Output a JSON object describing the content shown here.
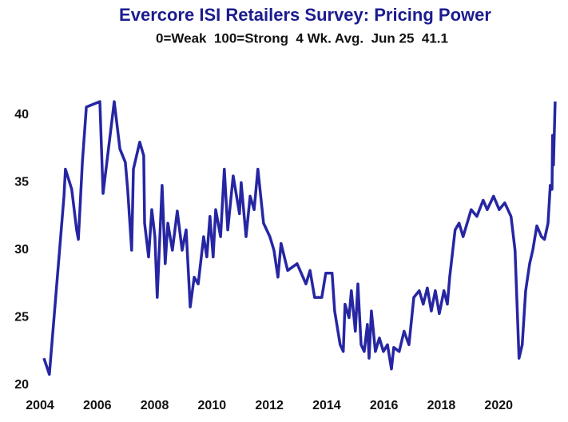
{
  "chart_data": {
    "type": "line",
    "title": "Evercore ISI Retailers Survey: Pricing Power",
    "subtitle": "0=Weak  100=Strong  4 Wk. Avg.  Jun 25  41.1",
    "xlim": [
      2004,
      2022
    ],
    "xticks": [
      2004,
      2006,
      2008,
      2010,
      2012,
      2014,
      2016,
      2018,
      2020
    ],
    "ylim": [
      20,
      43
    ],
    "yticks": [
      20,
      25,
      30,
      35,
      40
    ],
    "grid": false,
    "series": [
      {
        "name": "Pricing Power",
        "color": "#2626a3",
        "x": [
          2004.14,
          2004.33,
          2004.84,
          2004.89,
          2005.11,
          2005.28,
          2005.34,
          2005.48,
          2005.62,
          2006.09,
          2006.2,
          2006.59,
          2006.79,
          2006.98,
          2007.06,
          2007.2,
          2007.26,
          2007.48,
          2007.62,
          2007.65,
          2007.79,
          2007.9,
          2008.01,
          2008.09,
          2008.26,
          2008.37,
          2008.46,
          2008.62,
          2008.79,
          2008.96,
          2009.1,
          2009.24,
          2009.38,
          2009.52,
          2009.71,
          2009.82,
          2009.93,
          2010.04,
          2010.13,
          2010.3,
          2010.43,
          2010.55,
          2010.74,
          2010.96,
          2011.02,
          2011.19,
          2011.33,
          2011.47,
          2011.6,
          2011.8,
          2012.02,
          2012.16,
          2012.3,
          2012.41,
          2012.64,
          2012.97,
          2013.28,
          2013.42,
          2013.58,
          2013.83,
          2013.97,
          2014.19,
          2014.28,
          2014.47,
          2014.58,
          2014.64,
          2014.78,
          2014.86,
          2015.0,
          2015.09,
          2015.2,
          2015.31,
          2015.42,
          2015.48,
          2015.56,
          2015.7,
          2015.84,
          2015.98,
          2016.12,
          2016.26,
          2016.34,
          2016.53,
          2016.7,
          2016.87,
          2017.04,
          2017.23,
          2017.37,
          2017.51,
          2017.65,
          2017.79,
          2017.93,
          2018.09,
          2018.21,
          2018.29,
          2018.48,
          2018.62,
          2018.76,
          2019.04,
          2019.24,
          2019.46,
          2019.6,
          2019.82,
          2020.02,
          2020.21,
          2020.43,
          2020.57,
          2020.71,
          2020.82,
          2020.94,
          2021.08,
          2021.19,
          2021.33,
          2021.49,
          2021.6,
          2021.72,
          2021.8,
          2021.86,
          2021.88,
          2021.91,
          2021.97
        ],
        "values": [
          22,
          20.8,
          34,
          36,
          34.5,
          31.5,
          30.8,
          36.5,
          40.6,
          41,
          34.2,
          41,
          37.5,
          36.5,
          34.5,
          30,
          36,
          38,
          37,
          32,
          29.5,
          33,
          31,
          26.5,
          34.8,
          29,
          32,
          30,
          32.9,
          30,
          31.5,
          25.8,
          28,
          27.5,
          31,
          29.5,
          32.5,
          29.5,
          33,
          31,
          36,
          31.5,
          35.5,
          32.7,
          35,
          31,
          34,
          33,
          36,
          32,
          31,
          30,
          28,
          30.5,
          28.5,
          29,
          27.5,
          28.5,
          26.5,
          26.5,
          28.3,
          28.3,
          25.5,
          23,
          22.5,
          26,
          25,
          27,
          24,
          27.5,
          23,
          22.5,
          24.5,
          22,
          25.5,
          22.5,
          23.5,
          22.5,
          23,
          21.2,
          22.8,
          22.5,
          24,
          23,
          26.5,
          27,
          26,
          27.2,
          25.5,
          27,
          25.3,
          27,
          26,
          28,
          31.5,
          32,
          31,
          33,
          32.5,
          33.7,
          33,
          34,
          33,
          33.5,
          32.5,
          30,
          22,
          23,
          27,
          29,
          30,
          31.8,
          31,
          30.8,
          32,
          34.8,
          34.5,
          38.5,
          36.3,
          41
        ]
      }
    ]
  }
}
